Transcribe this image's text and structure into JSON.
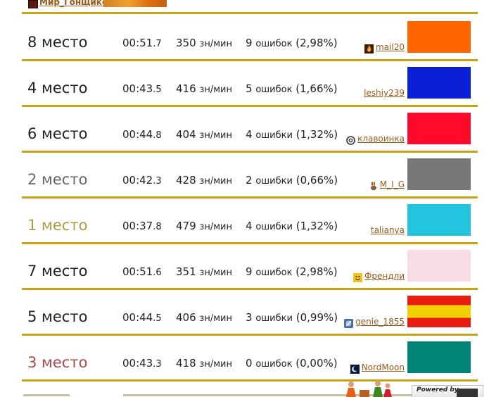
{
  "header": {
    "player_name": "Мир_Гонщикс"
  },
  "results": [
    {
      "place": "8 место",
      "place_color": "#222222",
      "time_main": "00:51",
      "time_frac": ".7",
      "speed_value": "350",
      "speed_unit": "зн/мин",
      "errors_count": "9",
      "errors_word": "ошибок",
      "errors_pct": "(2,98%)",
      "player": "mail20",
      "player_icon": "flame-icon",
      "car_color": "#ff6600"
    },
    {
      "place": "4 место",
      "place_color": "#222222",
      "time_main": "00:43",
      "time_frac": ".5",
      "speed_value": "416",
      "speed_unit": "зн/мин",
      "errors_count": "5",
      "errors_word": "ошибок",
      "errors_pct": "(1,66%)",
      "player": "leshiy239",
      "player_icon": "",
      "car_color": "#0a1fd6"
    },
    {
      "place": "6 место",
      "place_color": "#222222",
      "time_main": "00:44",
      "time_frac": ".8",
      "speed_value": "404",
      "speed_unit": "зн/мин",
      "errors_count": "4",
      "errors_word": "ошибки",
      "errors_pct": "(1,32%)",
      "player": "клавоинка",
      "player_icon": "at-sign-icon",
      "car_color": "#ff0a2a"
    },
    {
      "place": "2 место",
      "place_color": "#666666",
      "time_main": "00:42",
      "time_frac": ".3",
      "speed_value": "428",
      "speed_unit": "зн/мин",
      "errors_count": "2",
      "errors_word": "ошибки",
      "errors_pct": "(0,66%)",
      "player": "M_I_G",
      "player_icon": "rabbit-icon",
      "car_color": "#777777"
    },
    {
      "place": "1 место",
      "place_color": "#a8a044",
      "time_main": "00:37",
      "time_frac": ".8",
      "speed_value": "479",
      "speed_unit": "зн/мин",
      "errors_count": "4",
      "errors_word": "ошибки",
      "errors_pct": "(1,32%)",
      "player": "talianya",
      "player_icon": "",
      "car_color": "#22c4e0"
    },
    {
      "place": "7 место",
      "place_color": "#222222",
      "time_main": "00:51",
      "time_frac": ".6",
      "speed_value": "351",
      "speed_unit": "зн/мин",
      "errors_count": "9",
      "errors_word": "ошибок",
      "errors_pct": "(2,98%)",
      "player": "Френдли",
      "player_icon": "smiley-icon",
      "car_color": "#f8dde6"
    },
    {
      "place": "5 место",
      "place_color": "#222222",
      "time_main": "00:44",
      "time_frac": ".5",
      "speed_value": "406",
      "speed_unit": "зн/мин",
      "errors_count": "3",
      "errors_word": "ошибки",
      "errors_pct": "(0,99%)",
      "player": "genie_1855",
      "player_icon": "genie-icon",
      "car_color": "#e81c10"
    },
    {
      "place": "3 место",
      "place_color": "#a64a4a",
      "time_main": "00:43",
      "time_frac": ".3",
      "speed_value": "418",
      "speed_unit": "зн/мин",
      "errors_count": "0",
      "errors_word": "ошибок",
      "errors_pct": "(0,00%)",
      "player": "NordMoon",
      "player_icon": "moon-icon",
      "car_color": "#008577"
    }
  ],
  "footer": {
    "powered_label": "Powered by"
  }
}
